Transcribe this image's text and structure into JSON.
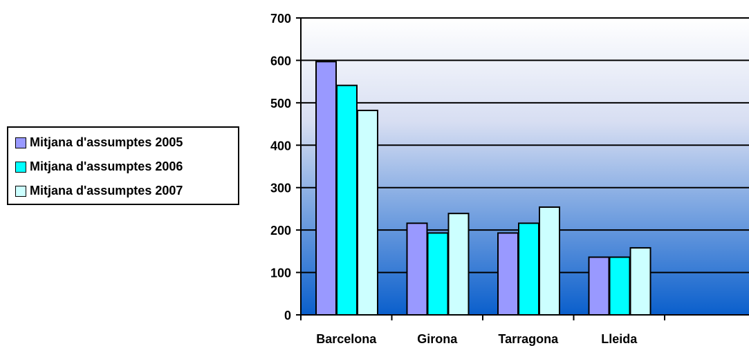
{
  "chart_data": {
    "type": "bar",
    "categories": [
      "Barcelona",
      "Girona",
      "Tarragona",
      "Lleida"
    ],
    "series": [
      {
        "name": "Mitjana d'assumptes 2005",
        "values": [
          597,
          216,
          193,
          136
        ],
        "color": "#9999ff"
      },
      {
        "name": "Mitjana d'assumptes 2006",
        "values": [
          541,
          193,
          216,
          136
        ],
        "color": "#00ffff"
      },
      {
        "name": "Mitjana d'assumptes 2007",
        "values": [
          482,
          239,
          254,
          158
        ],
        "color": "#ccffff"
      }
    ],
    "ylim": [
      0,
      700
    ],
    "yticks": [
      "0",
      "100",
      "200",
      "300",
      "400",
      "500",
      "600",
      "700"
    ],
    "grid": true,
    "legend_position": "left",
    "background_gradient": [
      "#ffffff",
      "#0a5fcc"
    ]
  }
}
